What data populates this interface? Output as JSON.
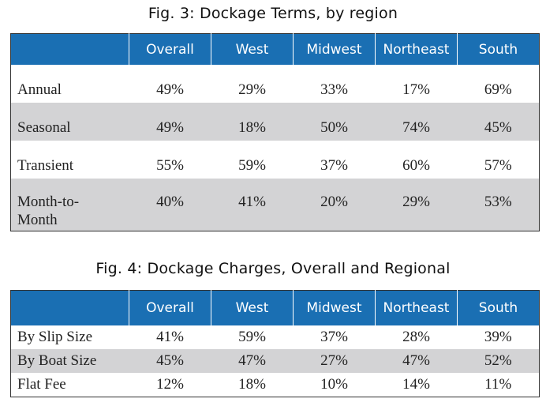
{
  "chart_data": [
    {
      "type": "table",
      "title": "Fig. 3: Dockage Terms, by region",
      "columns": [
        "Overall",
        "West",
        "Midwest",
        "Northeast",
        "South"
      ],
      "rows": [
        {
          "label": "Annual",
          "values": [
            "49%",
            "29%",
            "33%",
            "17%",
            "69%"
          ]
        },
        {
          "label": "Seasonal",
          "values": [
            "49%",
            "18%",
            "50%",
            "74%",
            "45%"
          ]
        },
        {
          "label": "Transient",
          "values": [
            "55%",
            "59%",
            "37%",
            "60%",
            "57%"
          ]
        },
        {
          "label": "Month-to-Month",
          "values": [
            "40%",
            "41%",
            "20%",
            "29%",
            "53%"
          ]
        }
      ]
    },
    {
      "type": "table",
      "title": "Fig. 4: Dockage Charges, Overall and Regional",
      "columns": [
        "Overall",
        "West",
        "Midwest",
        "Northeast",
        "South"
      ],
      "rows": [
        {
          "label": "By Slip Size",
          "values": [
            "41%",
            "59%",
            "37%",
            "28%",
            "39%"
          ]
        },
        {
          "label": "By Boat Size",
          "values": [
            "45%",
            "47%",
            "27%",
            "47%",
            "52%"
          ]
        },
        {
          "label": "Flat Fee",
          "values": [
            "12%",
            "18%",
            "10%",
            "14%",
            "11%"
          ]
        }
      ]
    }
  ],
  "colors": {
    "header_bg": "#1a6fb3",
    "stripe": "#d3d3d5",
    "text": "#222222"
  }
}
